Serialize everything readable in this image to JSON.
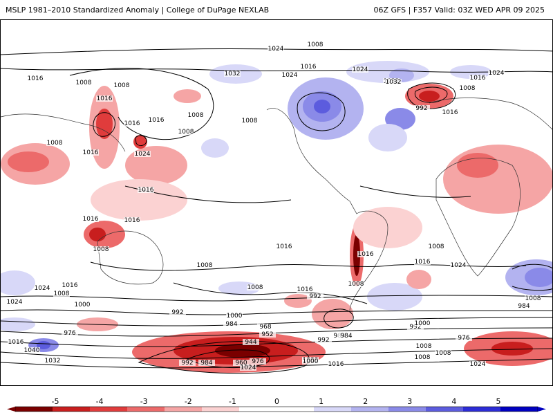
{
  "header": {
    "left_title": "MSLP 1981–2010 Standardized Anomaly | College of DuPage NEXLAB",
    "right_title": "06Z GFS | F357 Valid: 03Z WED APR 09 2025"
  },
  "colorbar": {
    "ticks": [
      "-5",
      "-4",
      "-3",
      "-2",
      "-1",
      "0",
      "1",
      "2",
      "3",
      "4",
      "5"
    ],
    "colors": [
      "#7a0000",
      "#c81e1e",
      "#e03c3c",
      "#ec6a6a",
      "#f5a5a5",
      "#fbd2d2",
      "#ffffff",
      "#ffffff",
      "#d8d8f8",
      "#b3b3f0",
      "#8a8ae8",
      "#5c5cde",
      "#2c2cd6",
      "#0000c0"
    ]
  },
  "map": {
    "isobar_labels": [
      "1016",
      "1008",
      "1024",
      "1032",
      "1016",
      "1008",
      "1024",
      "1016",
      "1008",
      "1032",
      "1024",
      "1016",
      "1024",
      "1032",
      "1008",
      "1016",
      "992",
      "1016",
      "1008",
      "1016",
      "1008",
      "1008",
      "1024",
      "1016",
      "1008",
      "1016",
      "1008",
      "1008",
      "1016",
      "1016",
      "1008",
      "1016",
      "1016",
      "1008",
      "1024",
      "1016",
      "1024",
      "1008",
      "1016",
      "1008",
      "1000",
      "992",
      "1000",
      "984",
      "968",
      "952",
      "944",
      "992",
      "984",
      "992",
      "1000",
      "1024",
      "984",
      "1008",
      "1008",
      "984",
      "976",
      "1000",
      "1040",
      "1032",
      "1016",
      "992",
      "984",
      "960",
      "976",
      "1000",
      "1016",
      "1024",
      "992",
      "1008",
      "976",
      "1024",
      "1016",
      "1008"
    ]
  }
}
